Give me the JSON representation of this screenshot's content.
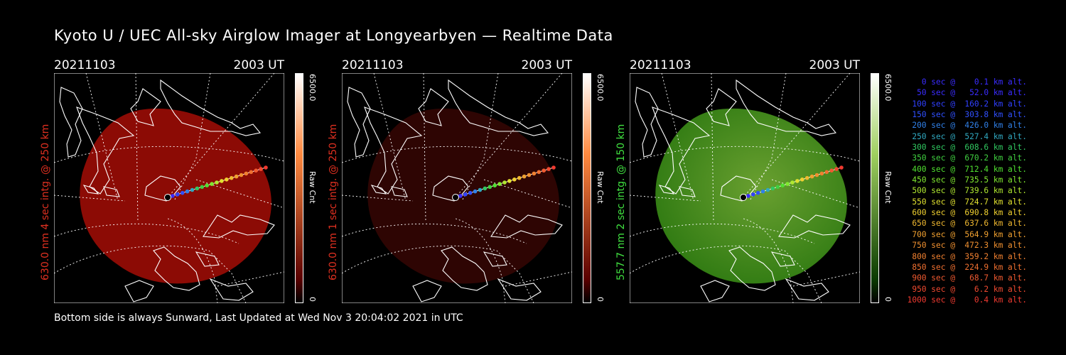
{
  "title": "Kyoto U / UEC All-sky Airglow Imager at Longyearbyen — Realtime Data",
  "footer": "Bottom side is always Sunward, Last Updated at Wed Nov  3 20:04:02 2021 in UTC",
  "panels": [
    {
      "date": "20211103",
      "time": "2003 UT",
      "label": "630.0 nm 4 sec intg. @ 250 km",
      "label_color": "#e03020",
      "colorbar": {
        "max": "6500.0",
        "min": "0",
        "unit": "Raw Cnt",
        "top_color": "#ffffff",
        "mid_color": "#ff8a40",
        "low_color": "#5a0000"
      },
      "fill_color": "#8c0b05"
    },
    {
      "date": "20211103",
      "time": "2003 UT",
      "label": "630.0 nm 1 sec intg. @ 250 km",
      "label_color": "#e03020",
      "colorbar": {
        "max": "6500.0",
        "min": "0",
        "unit": "Raw Cnt",
        "top_color": "#ffffff",
        "mid_color": "#ff8a40",
        "low_color": "#5a0000"
      },
      "fill_color": "#2e0503"
    },
    {
      "date": "20211103",
      "time": "2003 UT",
      "label": "557.7 nm 2 sec intg. @ 150 km",
      "label_color": "#40e040",
      "colorbar": {
        "max": "6500.0",
        "min": "0",
        "unit": "Raw Cnt",
        "top_color": "#ffffff",
        "mid_color": "#a0d060",
        "low_color": "#0a3a00"
      },
      "fill_color": "#2f7a12"
    }
  ],
  "legend": [
    {
      "text": "   0 sec @    0.1 km alt.",
      "color": "#3a2cff"
    },
    {
      "text": "  50 sec @   52.0 km alt.",
      "color": "#3a2cff"
    },
    {
      "text": " 100 sec @  160.2 km alt.",
      "color": "#3040ff"
    },
    {
      "text": " 150 sec @  303.8 km alt.",
      "color": "#3050ff"
    },
    {
      "text": " 200 sec @  426.0 km alt.",
      "color": "#3080e8"
    },
    {
      "text": " 250 sec @  527.4 km alt.",
      "color": "#30a8c0"
    },
    {
      "text": " 300 sec @  608.6 km alt.",
      "color": "#30c860"
    },
    {
      "text": " 350 sec @  670.2 km alt.",
      "color": "#40d040"
    },
    {
      "text": " 400 sec @  712.4 km alt.",
      "color": "#50e030"
    },
    {
      "text": " 450 sec @  735.5 km alt.",
      "color": "#80e830"
    },
    {
      "text": " 500 sec @  739.6 km alt.",
      "color": "#b0e830"
    },
    {
      "text": " 550 sec @  724.7 km alt.",
      "color": "#e0e030"
    },
    {
      "text": " 600 sec @  690.8 km alt.",
      "color": "#f0d030"
    },
    {
      "text": " 650 sec @  637.6 km alt.",
      "color": "#f0b830"
    },
    {
      "text": " 700 sec @  564.9 km alt.",
      "color": "#f0a030"
    },
    {
      "text": " 750 sec @  472.3 km alt.",
      "color": "#f09030"
    },
    {
      "text": " 800 sec @  359.2 km alt.",
      "color": "#f08030"
    },
    {
      "text": " 850 sec @  224.9 km alt.",
      "color": "#f07030"
    },
    {
      "text": " 900 sec @   68.7 km alt.",
      "color": "#f05a30"
    },
    {
      "text": " 950 sec @    6.2 km alt.",
      "color": "#f04a30"
    },
    {
      "text": "1000 sec @    0.4 km alt.",
      "color": "#f03a30"
    }
  ]
}
